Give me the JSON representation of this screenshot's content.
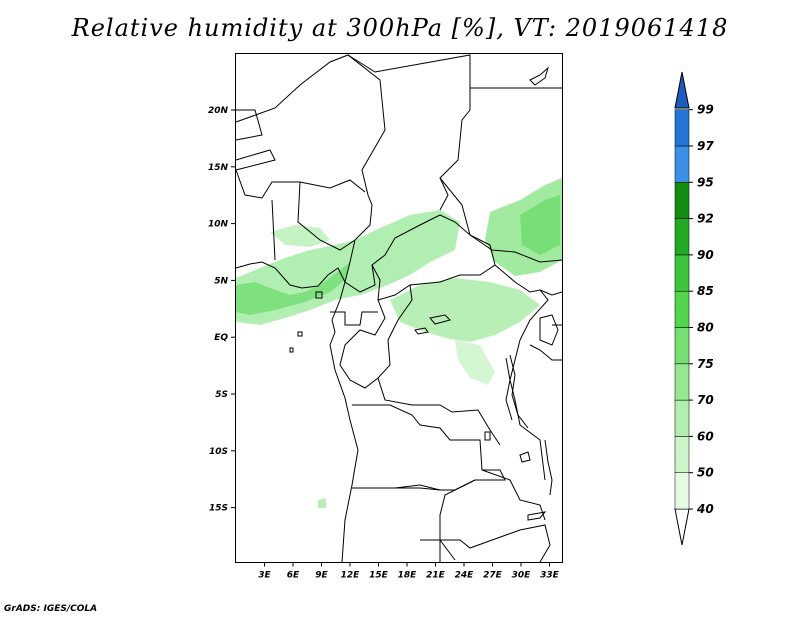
{
  "title": "Relative humidity at 300hPa [%], VT: 2019061418",
  "credit": "GrADS: IGES/COLA",
  "map": {
    "lon_labels": [
      "3E",
      "6E",
      "9E",
      "12E",
      "15E",
      "18E",
      "21E",
      "24E",
      "27E",
      "30E",
      "33E"
    ],
    "lat_labels": [
      "20N",
      "15N",
      "10N",
      "5N",
      "EQ",
      "5S",
      "10S",
      "15S"
    ]
  },
  "colorbar": {
    "levels": [
      "40",
      "50",
      "60",
      "70",
      "75",
      "80",
      "85",
      "90",
      "92",
      "95",
      "97",
      "99"
    ],
    "colors": [
      "#ffffff",
      "#e6fbe4",
      "#cdf5c9",
      "#b2efae",
      "#95e88f",
      "#76df71",
      "#52d54d",
      "#3cc43c",
      "#23aa23",
      "#128d12",
      "#3b8fe6",
      "#2574d8",
      "#1a5cbf"
    ]
  }
}
